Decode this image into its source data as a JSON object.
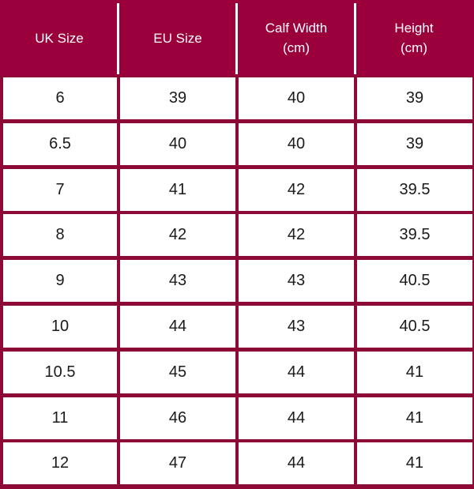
{
  "table": {
    "headers": [
      "UK Size",
      "EU Size",
      "Calf Width\n(cm)",
      "Height\n(cm)"
    ],
    "rows": [
      [
        "6",
        "39",
        "40",
        "39"
      ],
      [
        "6.5",
        "40",
        "40",
        "39"
      ],
      [
        "7",
        "41",
        "42",
        "39.5"
      ],
      [
        "8",
        "42",
        "42",
        "39.5"
      ],
      [
        "9",
        "43",
        "43",
        "40.5"
      ],
      [
        "10",
        "44",
        "43",
        "40.5"
      ],
      [
        "10.5",
        "45",
        "44",
        "41"
      ],
      [
        "11",
        "46",
        "44",
        "41"
      ],
      [
        "12",
        "47",
        "44",
        "41"
      ]
    ]
  },
  "colors": {
    "header_background": "#9b003d",
    "border": "#8c0a35",
    "cell_background": "#ffffff",
    "header_text": "#ffffff",
    "cell_text": "#1a1a1a"
  }
}
